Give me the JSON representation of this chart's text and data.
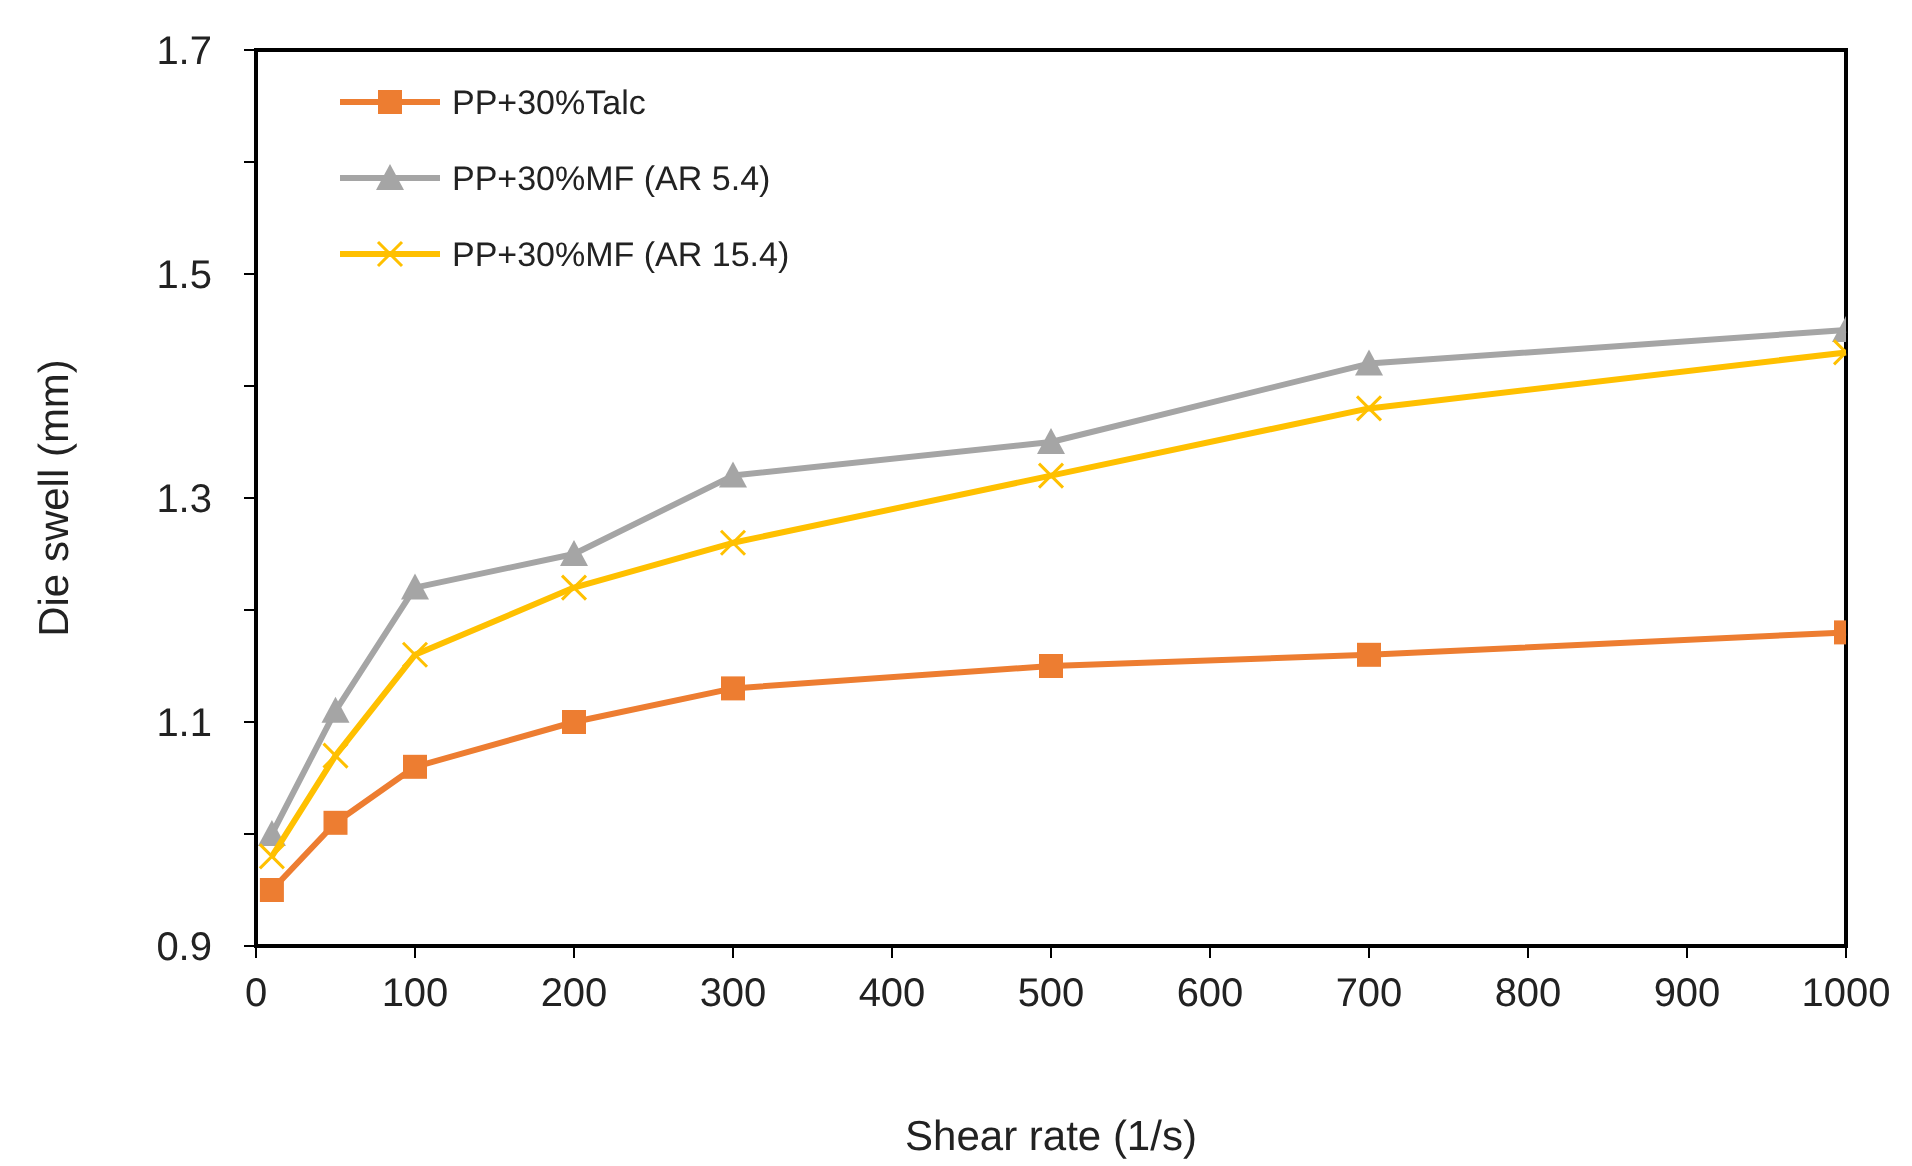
{
  "chart_data": {
    "type": "line",
    "xlabel": "Shear rate (1/s)",
    "ylabel": "Die swell (mm)",
    "x": [
      10,
      50,
      100,
      200,
      300,
      500,
      700,
      1000
    ],
    "series": [
      {
        "name": "PP+30%Talc",
        "color": "#ed7d31",
        "marker": "square",
        "values": [
          0.95,
          1.01,
          1.06,
          1.1,
          1.13,
          1.15,
          1.16,
          1.18
        ]
      },
      {
        "name": "PP+30%MF (AR 5.4)",
        "color": "#a5a5a5",
        "marker": "triangle",
        "values": [
          1.0,
          1.11,
          1.22,
          1.25,
          1.32,
          1.35,
          1.42,
          1.45
        ]
      },
      {
        "name": "PP+30%MF (AR 15.4)",
        "color": "#ffc000",
        "marker": "cross",
        "values": [
          0.98,
          1.07,
          1.16,
          1.22,
          1.26,
          1.32,
          1.38,
          1.43
        ]
      }
    ],
    "xlim": [
      0,
      1000
    ],
    "xticks": [
      0,
      100,
      200,
      300,
      400,
      500,
      600,
      700,
      800,
      900,
      1000
    ],
    "ylim": [
      0.9,
      1.7
    ],
    "yticks": [
      0.9,
      {
        "value": 1.0,
        "label": null
      },
      1.1,
      {
        "value": 1.2,
        "label": null
      },
      1.3,
      {
        "value": 1.4,
        "label": null
      },
      1.5,
      {
        "value": 1.6,
        "label": null
      },
      1.7
    ],
    "grid": false,
    "legend": "top left",
    "line_style": "solid"
  }
}
